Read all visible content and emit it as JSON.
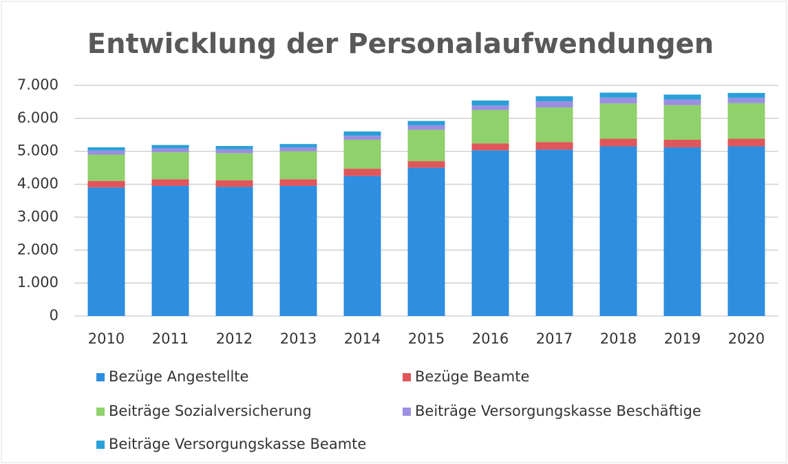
{
  "chart_data": {
    "type": "stacked_bar",
    "title": "Entwicklung der Personalaufwendungen",
    "categories": [
      "2010",
      "2011",
      "2012",
      "2013",
      "2014",
      "2015",
      "2016",
      "2017",
      "2018",
      "2019",
      "2020"
    ],
    "series": [
      {
        "name": "Bezüge Angestellte",
        "color": "#2e8ee0",
        "values": [
          3900,
          3950,
          3920,
          3950,
          4250,
          4500,
          5030,
          5050,
          5150,
          5120,
          5150
        ]
      },
      {
        "name": "Bezüge Beamte",
        "color": "#e0565a",
        "values": [
          200,
          200,
          200,
          200,
          220,
          200,
          210,
          230,
          230,
          230,
          230
        ]
      },
      {
        "name": "Beiträge Sozialversicherung",
        "color": "#8fd16a",
        "values": [
          800,
          820,
          820,
          850,
          880,
          950,
          1010,
          1050,
          1070,
          1050,
          1080
        ]
      },
      {
        "name": "Beiträge Versorgungskasse Beschäftige",
        "color": "#9a8fe0",
        "values": [
          120,
          120,
          120,
          120,
          120,
          140,
          140,
          190,
          180,
          170,
          160
        ]
      },
      {
        "name": "Beiträge Versorgungskasse Beamte",
        "color": "#2aa0d8",
        "values": [
          100,
          100,
          100,
          100,
          130,
          130,
          150,
          150,
          150,
          150,
          150
        ]
      }
    ],
    "ylim": [
      0,
      7000
    ],
    "yticks": [
      0,
      {
        "value": 1000,
        "label": "1.000"
      },
      {
        "value": 2000,
        "label": "2.000"
      },
      {
        "value": 3000,
        "label": "3.000"
      },
      {
        "value": 4000,
        "label": "4.000"
      },
      {
        "value": 5000,
        "label": "5.000"
      },
      {
        "value": 6000,
        "label": "6.000"
      },
      {
        "value": 7000,
        "label": "7.000"
      }
    ],
    "grid": true,
    "legend": "bottom"
  }
}
